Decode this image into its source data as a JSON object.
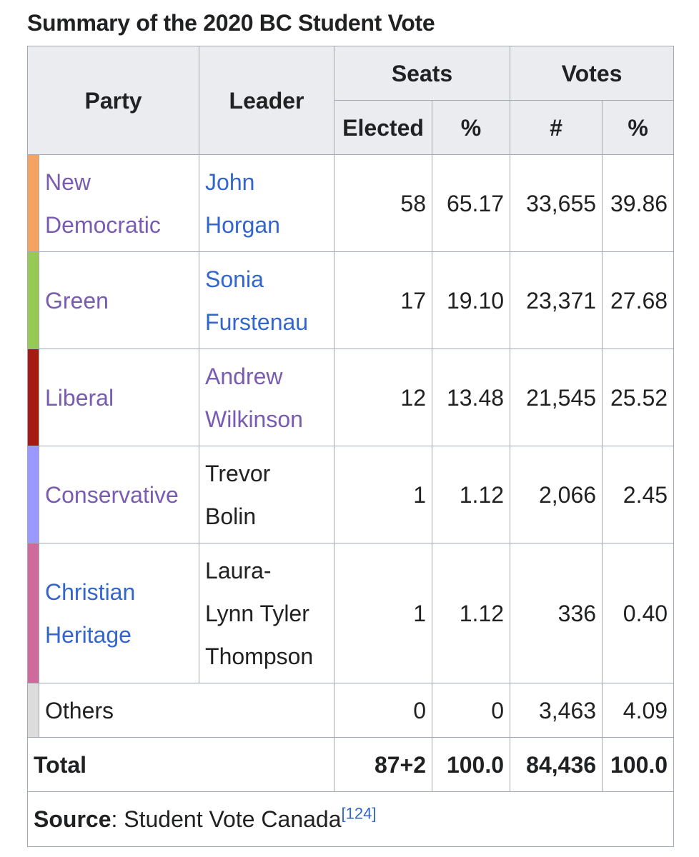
{
  "caption": "Summary of the 2020 BC Student Vote",
  "headers": {
    "party": "Party",
    "leader": "Leader",
    "seats": "Seats",
    "votes": "Votes",
    "elected": "Elected",
    "seats_pct": "%",
    "votes_num": "#",
    "votes_pct": "%"
  },
  "rows": [
    {
      "color": "#F4A460",
      "party_line1": "New",
      "party_line2": "Democratic",
      "leader_line1": "John",
      "leader_line2": "Horgan",
      "elected": "58",
      "seats_pct": "65.17",
      "votes": "33,655",
      "votes_pct": "39.86"
    },
    {
      "color": "#99C955",
      "party": "Green",
      "leader_line1": "Sonia",
      "leader_line2": "Furstenau",
      "elected": "17",
      "seats_pct": "19.10",
      "votes": "23,371",
      "votes_pct": "27.68"
    },
    {
      "color": "#A51B12",
      "party": "Liberal",
      "leader_line1": "Andrew",
      "leader_line2": "Wilkinson",
      "elected": "12",
      "seats_pct": "13.48",
      "votes": "21,545",
      "votes_pct": "25.52"
    },
    {
      "color": "#9999FF",
      "party": "Conservative",
      "leader_line1": "Trevor",
      "leader_line2": "Bolin",
      "elected": "1",
      "seats_pct": "1.12",
      "votes": "2,066",
      "votes_pct": "2.45"
    },
    {
      "color": "#CF6B9C",
      "party_line1": "Christian",
      "party_line2": "Heritage",
      "leader_line1": "Laura-",
      "leader_line2": "Lynn Tyler",
      "leader_line3": "Thompson",
      "elected": "1",
      "seats_pct": "1.12",
      "votes": "336",
      "votes_pct": "0.40"
    },
    {
      "color": "#DCDCDC",
      "party": "Others",
      "elected": "0",
      "seats_pct": "0",
      "votes": "3,463",
      "votes_pct": "4.09"
    }
  ],
  "total": {
    "label": "Total",
    "elected": "87+2",
    "seats_pct": "100.0",
    "votes": "84,436",
    "votes_pct": "100.0"
  },
  "source": {
    "label": "Source",
    "separator": ": ",
    "text": "Student Vote Canada",
    "ref": "[124]"
  }
}
